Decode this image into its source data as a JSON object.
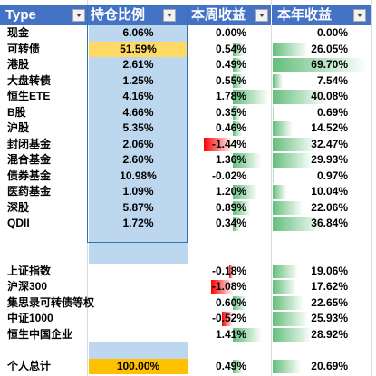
{
  "headers": {
    "type": "Type",
    "share": "持仓比例",
    "week": "本周收益",
    "year": "本年收益"
  },
  "colors": {
    "header_bg": "#4472c4",
    "share_fill": "#bdd7ee",
    "share_highlight": "#ffd966",
    "total_share": "#ffc000",
    "bar_positive": "#63be7b",
    "bar_negative": "#ff0000"
  },
  "rows": [
    {
      "type": "现金",
      "share": "6.06%",
      "week": "0.00%",
      "year": "0.00%",
      "week_val": 0.0,
      "year_val": 0.0,
      "share_style": "normal"
    },
    {
      "type": "可转债",
      "share": "51.59%",
      "week": "0.54%",
      "year": "26.05%",
      "week_val": 0.54,
      "year_val": 26.05,
      "share_style": "highlight"
    },
    {
      "type": "港股",
      "share": "2.61%",
      "week": "0.49%",
      "year": "69.70%",
      "week_val": 0.49,
      "year_val": 69.7,
      "share_style": "normal"
    },
    {
      "type": "大盘转债",
      "share": "1.25%",
      "week": "0.55%",
      "year": "7.54%",
      "week_val": 0.55,
      "year_val": 7.54,
      "share_style": "normal"
    },
    {
      "type": "恒生ETE",
      "share": "4.16%",
      "week": "1.78%",
      "year": "40.08%",
      "week_val": 1.78,
      "year_val": 40.08,
      "share_style": "normal"
    },
    {
      "type": "B股",
      "share": "4.66%",
      "week": "0.35%",
      "year": "0.69%",
      "week_val": 0.35,
      "year_val": 0.69,
      "share_style": "normal"
    },
    {
      "type": "沪股",
      "share": "5.35%",
      "week": "0.46%",
      "year": "14.52%",
      "week_val": 0.46,
      "year_val": 14.52,
      "share_style": "normal"
    },
    {
      "type": "封闭基金",
      "share": "2.06%",
      "week": "-1.44%",
      "year": "32.47%",
      "week_val": -1.44,
      "year_val": 32.47,
      "share_style": "normal"
    },
    {
      "type": "混合基金",
      "share": "2.60%",
      "week": "1.36%",
      "year": "29.93%",
      "week_val": 1.36,
      "year_val": 29.93,
      "share_style": "normal"
    },
    {
      "type": "债券基金",
      "share": "10.98%",
      "week": "-0.02%",
      "year": "0.97%",
      "week_val": -0.02,
      "year_val": 0.97,
      "share_style": "normal"
    },
    {
      "type": "医药基金",
      "share": "1.09%",
      "week": "1.20%",
      "year": "10.04%",
      "week_val": 1.2,
      "year_val": 10.04,
      "share_style": "normal"
    },
    {
      "type": "深股",
      "share": "5.87%",
      "week": "0.89%",
      "year": "22.06%",
      "week_val": 0.89,
      "year_val": 22.06,
      "share_style": "normal"
    },
    {
      "type": "QDII",
      "share": "1.72%",
      "week": "0.34%",
      "year": "36.84%",
      "week_val": 0.34,
      "year_val": 36.84,
      "share_style": "normal"
    },
    {
      "type": "",
      "share": "",
      "week": "",
      "year": "",
      "week_val": 0,
      "year_val": 0,
      "share_style": "blank"
    },
    {
      "type": "",
      "share": "",
      "week": "",
      "year": "",
      "week_val": 0,
      "year_val": 0,
      "share_style": "blank"
    },
    {
      "type": "上证指数",
      "share": "",
      "week": "-0.18%",
      "year": "19.06%",
      "week_val": -0.18,
      "year_val": 19.06,
      "share_style": "none"
    },
    {
      "type": "沪深300",
      "share": "",
      "week": "-1.08%",
      "year": "17.62%",
      "week_val": -1.08,
      "year_val": 17.62,
      "share_style": "none"
    },
    {
      "type": "集思录可转债等权",
      "share": "",
      "week": "0.60%",
      "year": "22.65%",
      "week_val": 0.6,
      "year_val": 22.65,
      "share_style": "none"
    },
    {
      "type": "中证1000",
      "share": "",
      "week": "-0.52%",
      "year": "25.93%",
      "week_val": -0.52,
      "year_val": 25.93,
      "share_style": "none"
    },
    {
      "type": "恒生中国企业",
      "share": "",
      "week": "1.41%",
      "year": "28.92%",
      "week_val": 1.41,
      "year_val": 28.92,
      "share_style": "none"
    },
    {
      "type": "",
      "share": "",
      "week": "",
      "year": "",
      "week_val": 0,
      "year_val": 0,
      "share_style": "blank"
    },
    {
      "type": "个人总计",
      "share": "100.00%",
      "week": "0.49%",
      "year": "20.69%",
      "week_val": 0.49,
      "year_val": 20.69,
      "share_style": "total"
    }
  ]
}
